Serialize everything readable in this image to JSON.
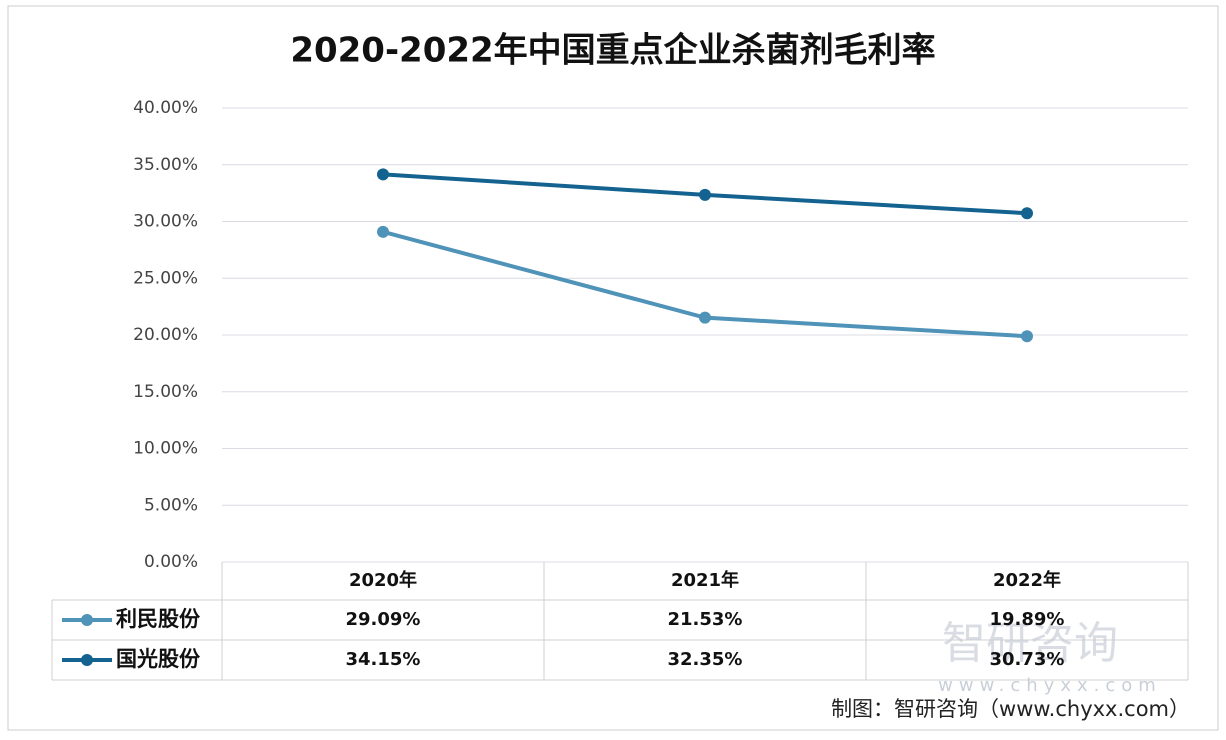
{
  "chart_data": {
    "type": "line",
    "title": "2020-2022年中国重点企业杀菌剂毛利率",
    "categories": [
      "2020年",
      "2021年",
      "2022年"
    ],
    "series": [
      {
        "name": "利民股份",
        "color": "#4f93b8",
        "values": [
          29.09,
          21.53,
          19.89
        ],
        "value_labels": [
          "29.09%",
          "21.53%",
          "19.89%"
        ]
      },
      {
        "name": "国光股份",
        "color": "#14628f",
        "values": [
          34.15,
          32.35,
          30.73
        ],
        "value_labels": [
          "34.15%",
          "32.35%",
          "30.73%"
        ]
      }
    ],
    "ylim": [
      0,
      40
    ],
    "yticks": [
      {
        "value": 0,
        "label": "0.00%"
      },
      {
        "value": 5,
        "label": "5.00%"
      },
      {
        "value": 10,
        "label": "10.00%"
      },
      {
        "value": 15,
        "label": "15.00%"
      },
      {
        "value": 20,
        "label": "20.00%"
      },
      {
        "value": 25,
        "label": "25.00%"
      },
      {
        "value": 30,
        "label": "30.00%"
      },
      {
        "value": 35,
        "label": "35.00%"
      },
      {
        "value": 40,
        "label": "40.00%"
      }
    ],
    "grid": true,
    "watermark": "智研咨询",
    "watermark_url": "www.chyxx.com",
    "source": "制图：智研咨询（www.chyxx.com）"
  }
}
